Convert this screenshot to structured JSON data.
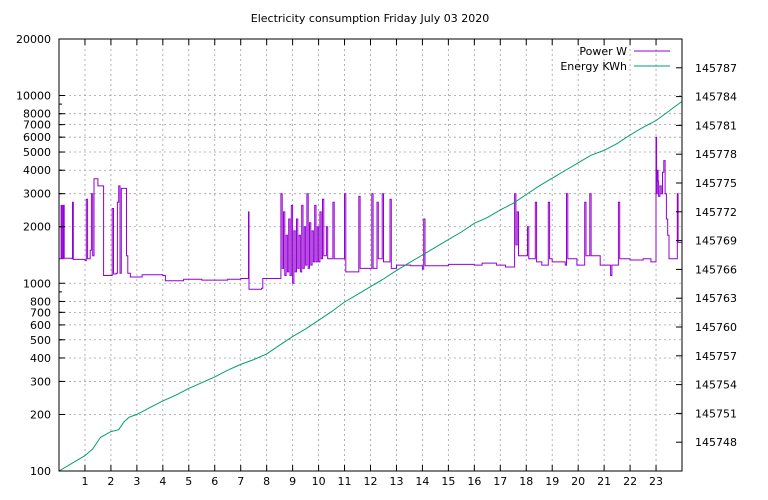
{
  "chart_data": {
    "type": "line",
    "title": "Electricity consumption Friday July 03 2020",
    "x_ticks": [
      "1",
      "2",
      "3",
      "4",
      "5",
      "6",
      "7",
      "8",
      "9",
      "10",
      "11",
      "12",
      "13",
      "14",
      "15",
      "16",
      "17",
      "18",
      "19",
      "20",
      "21",
      "22",
      "23"
    ],
    "xlim": [
      0,
      24
    ],
    "y_left": {
      "scale": "log",
      "ylim": [
        100,
        20000
      ],
      "ticks": [
        "20000",
        "10000",
        "8000",
        "7000",
        "6000",
        "5000",
        "4000",
        "3000",
        "2000",
        "1000",
        "800",
        "700",
        "600",
        "500",
        "400",
        "300",
        "200",
        "100"
      ]
    },
    "y_right": {
      "ylim": [
        145745,
        145790
      ],
      "ticks": [
        "145787",
        "145784",
        "145781",
        "145778",
        "145775",
        "145772",
        "145769",
        "145766",
        "145763",
        "145760",
        "145757",
        "145754",
        "145751",
        "145748"
      ]
    },
    "grid": true,
    "legend_position": "top-right",
    "series": [
      {
        "name": "Power W",
        "axis": "left",
        "color": "#9400d3",
        "points": [
          [
            0.0,
            1350
          ],
          [
            0.08,
            2600
          ],
          [
            0.12,
            1350
          ],
          [
            0.16,
            2600
          ],
          [
            0.2,
            1360
          ],
          [
            0.5,
            1350
          ],
          [
            0.52,
            2700
          ],
          [
            0.55,
            1340
          ],
          [
            1.0,
            1320
          ],
          [
            1.05,
            2800
          ],
          [
            1.1,
            1350
          ],
          [
            1.2,
            1500
          ],
          [
            1.25,
            3000
          ],
          [
            1.3,
            1400
          ],
          [
            1.35,
            3600
          ],
          [
            1.45,
            3600
          ],
          [
            1.5,
            3300
          ],
          [
            1.7,
            3300
          ],
          [
            1.72,
            1100
          ],
          [
            2.0,
            1100
          ],
          [
            2.05,
            2500
          ],
          [
            2.1,
            1120
          ],
          [
            2.2,
            1130
          ],
          [
            2.25,
            2700
          ],
          [
            2.3,
            3300
          ],
          [
            2.35,
            1130
          ],
          [
            2.4,
            3200
          ],
          [
            2.55,
            3200
          ],
          [
            2.6,
            1400
          ],
          [
            2.65,
            1130
          ],
          [
            2.75,
            1080
          ],
          [
            3.0,
            1080
          ],
          [
            3.2,
            1110
          ],
          [
            3.5,
            1110
          ],
          [
            4.0,
            1100
          ],
          [
            4.1,
            1030
          ],
          [
            4.5,
            1030
          ],
          [
            4.8,
            1050
          ],
          [
            5.0,
            1050
          ],
          [
            5.5,
            1040
          ],
          [
            6.0,
            1040
          ],
          [
            6.5,
            1050
          ],
          [
            7.0,
            1060
          ],
          [
            7.25,
            1060
          ],
          [
            7.3,
            2400
          ],
          [
            7.32,
            930
          ],
          [
            7.5,
            930
          ],
          [
            7.8,
            940
          ],
          [
            7.85,
            1060
          ],
          [
            8.5,
            1060
          ],
          [
            8.55,
            3000
          ],
          [
            8.6,
            1200
          ],
          [
            8.65,
            2400
          ],
          [
            8.7,
            1100
          ],
          [
            8.75,
            1800
          ],
          [
            8.8,
            1150
          ],
          [
            8.85,
            2200
          ],
          [
            8.9,
            1100
          ],
          [
            8.95,
            2600
          ],
          [
            9.0,
            1000
          ],
          [
            9.05,
            1900
          ],
          [
            9.1,
            1150
          ],
          [
            9.15,
            2200
          ],
          [
            9.2,
            1200
          ],
          [
            9.25,
            1800
          ],
          [
            9.3,
            1150
          ],
          [
            9.35,
            2600
          ],
          [
            9.4,
            1200
          ],
          [
            9.45,
            2000
          ],
          [
            9.5,
            1250
          ],
          [
            9.55,
            3000
          ],
          [
            9.6,
            1200
          ],
          [
            9.65,
            2100
          ],
          [
            9.7,
            1250
          ],
          [
            9.75,
            1900
          ],
          [
            9.8,
            1300
          ],
          [
            9.85,
            2600
          ],
          [
            9.9,
            1300
          ],
          [
            9.95,
            2000
          ],
          [
            10.0,
            1300
          ],
          [
            10.05,
            2400
          ],
          [
            10.1,
            1350
          ],
          [
            10.15,
            2800
          ],
          [
            10.2,
            1400
          ],
          [
            10.3,
            2000
          ],
          [
            10.35,
            1350
          ],
          [
            10.5,
            1350
          ],
          [
            10.55,
            2700
          ],
          [
            10.6,
            1350
          ],
          [
            10.95,
            1350
          ],
          [
            11.0,
            3000
          ],
          [
            11.05,
            1150
          ],
          [
            11.5,
            1150
          ],
          [
            11.55,
            2900
          ],
          [
            11.6,
            1200
          ],
          [
            12.0,
            1200
          ],
          [
            12.05,
            3000
          ],
          [
            12.1,
            1200
          ],
          [
            12.2,
            1200
          ],
          [
            12.25,
            2700
          ],
          [
            12.3,
            1350
          ],
          [
            12.4,
            1350
          ],
          [
            12.45,
            3000
          ],
          [
            12.5,
            1300
          ],
          [
            12.7,
            1300
          ],
          [
            12.75,
            2800
          ],
          [
            12.8,
            1200
          ],
          [
            13.0,
            1250
          ],
          [
            13.5,
            1250
          ],
          [
            13.55,
            1240
          ],
          [
            14.0,
            1190
          ],
          [
            14.05,
            2200
          ],
          [
            14.1,
            1240
          ],
          [
            14.5,
            1240
          ],
          [
            15.0,
            1260
          ],
          [
            15.5,
            1260
          ],
          [
            16.0,
            1250
          ],
          [
            16.3,
            1280
          ],
          [
            16.8,
            1280
          ],
          [
            16.85,
            1250
          ],
          [
            17.0,
            1250
          ],
          [
            17.2,
            1220
          ],
          [
            17.5,
            1220
          ],
          [
            17.55,
            3000
          ],
          [
            17.6,
            1600
          ],
          [
            17.65,
            2400
          ],
          [
            17.7,
            1400
          ],
          [
            18.0,
            1400
          ],
          [
            18.05,
            2000
          ],
          [
            18.1,
            1350
          ],
          [
            18.3,
            1350
          ],
          [
            18.35,
            2700
          ],
          [
            18.4,
            1300
          ],
          [
            18.6,
            1250
          ],
          [
            18.8,
            1250
          ],
          [
            18.85,
            2700
          ],
          [
            18.9,
            1350
          ],
          [
            19.0,
            1300
          ],
          [
            19.5,
            1250
          ],
          [
            19.55,
            3000
          ],
          [
            19.6,
            1350
          ],
          [
            19.9,
            1350
          ],
          [
            19.95,
            1250
          ],
          [
            20.2,
            1250
          ],
          [
            20.25,
            2700
          ],
          [
            20.3,
            1400
          ],
          [
            20.4,
            1400
          ],
          [
            20.45,
            3000
          ],
          [
            20.5,
            1400
          ],
          [
            20.8,
            1400
          ],
          [
            20.85,
            1250
          ],
          [
            21.2,
            1250
          ],
          [
            21.25,
            1100
          ],
          [
            21.3,
            1250
          ],
          [
            21.5,
            1250
          ],
          [
            21.55,
            2700
          ],
          [
            21.6,
            1350
          ],
          [
            22.0,
            1330
          ],
          [
            22.5,
            1350
          ],
          [
            22.75,
            1350
          ],
          [
            22.8,
            1300
          ],
          [
            22.95,
            1300
          ],
          [
            23.0,
            6000
          ],
          [
            23.02,
            3000
          ],
          [
            23.05,
            4000
          ],
          [
            23.08,
            3500
          ],
          [
            23.1,
            2900
          ],
          [
            23.15,
            3300
          ],
          [
            23.2,
            3000
          ],
          [
            23.25,
            3900
          ],
          [
            23.3,
            4500
          ],
          [
            23.35,
            3000
          ],
          [
            23.4,
            2200
          ],
          [
            23.45,
            1800
          ],
          [
            23.5,
            1350
          ],
          [
            23.8,
            1350
          ],
          [
            23.82,
            3000
          ],
          [
            23.85,
            1650
          ],
          [
            24.0,
            1650
          ]
        ]
      },
      {
        "name": "Energy KWh",
        "axis": "right",
        "color": "#009e73",
        "points": [
          [
            0.0,
            145745.0
          ],
          [
            0.5,
            145745.8
          ],
          [
            1.0,
            145746.6
          ],
          [
            1.3,
            145747.3
          ],
          [
            1.6,
            145748.5
          ],
          [
            2.0,
            145749.1
          ],
          [
            2.3,
            145749.3
          ],
          [
            2.5,
            145750.1
          ],
          [
            2.7,
            145750.6
          ],
          [
            3.0,
            145750.9
          ],
          [
            3.5,
            145751.6
          ],
          [
            4.0,
            145752.3
          ],
          [
            4.5,
            145752.9
          ],
          [
            5.0,
            145753.6
          ],
          [
            5.5,
            145754.2
          ],
          [
            6.0,
            145754.8
          ],
          [
            6.5,
            145755.5
          ],
          [
            7.0,
            145756.1
          ],
          [
            7.5,
            145756.6
          ],
          [
            8.0,
            145757.2
          ],
          [
            8.5,
            145758.1
          ],
          [
            9.0,
            145759.0
          ],
          [
            9.5,
            145759.8
          ],
          [
            10.0,
            145760.7
          ],
          [
            10.5,
            145761.6
          ],
          [
            11.0,
            145762.6
          ],
          [
            11.5,
            145763.4
          ],
          [
            12.0,
            145764.2
          ],
          [
            12.5,
            145765.0
          ],
          [
            13.0,
            145765.9
          ],
          [
            13.5,
            145766.7
          ],
          [
            14.0,
            145767.5
          ],
          [
            14.5,
            145768.3
          ],
          [
            15.0,
            145769.1
          ],
          [
            15.5,
            145769.9
          ],
          [
            16.0,
            145770.8
          ],
          [
            16.5,
            145771.4
          ],
          [
            17.0,
            145772.2
          ],
          [
            17.5,
            145772.9
          ],
          [
            18.0,
            145773.8
          ],
          [
            18.5,
            145774.7
          ],
          [
            19.0,
            145775.5
          ],
          [
            19.5,
            145776.3
          ],
          [
            20.0,
            145777.1
          ],
          [
            20.5,
            145777.9
          ],
          [
            21.0,
            145778.4
          ],
          [
            21.5,
            145779.1
          ],
          [
            22.0,
            145780.0
          ],
          [
            22.5,
            145780.8
          ],
          [
            23.0,
            145781.5
          ],
          [
            23.5,
            145782.5
          ],
          [
            24.0,
            145783.5
          ]
        ]
      }
    ]
  }
}
